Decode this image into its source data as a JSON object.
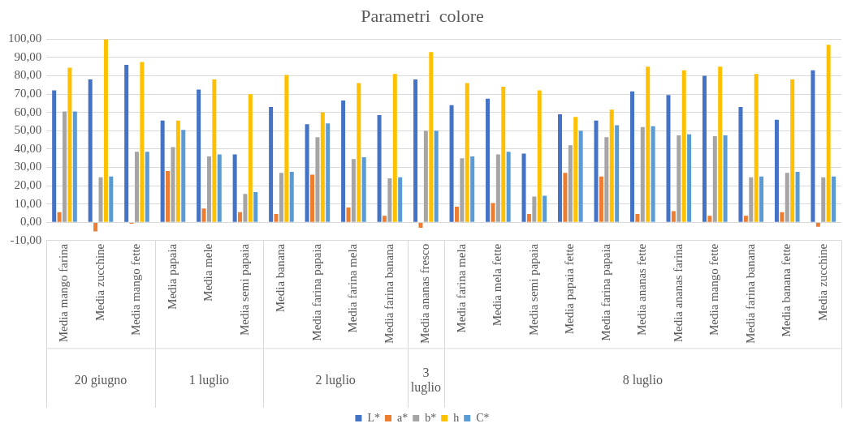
{
  "chart_data": {
    "type": "bar",
    "title": "Parametri  colore",
    "categories": [
      "Media mango farina",
      "Media zucchine",
      "Media mango fette",
      "Media papaia",
      "Media mele",
      "Media semi papaia",
      "Media banana",
      "Media farina papaia",
      "Media farina mela",
      "Media farina banana",
      "Media ananas fresco",
      "Media farina mela",
      "Media mela fette",
      "Media semi papaia",
      "Media papaia fette",
      "Media farina papaia",
      "Media ananas fette",
      "Media ananas farina",
      "Media mango fette",
      "Media farina banana",
      "Media banana fette",
      "Media zucchine"
    ],
    "series": [
      {
        "name": "L*",
        "color": "#4472c4",
        "values": [
          72,
          78,
          86,
          55.5,
          72.5,
          37,
          63,
          53.5,
          66.5,
          58.5,
          78,
          64,
          67.5,
          37.5,
          59,
          55.5,
          71.5,
          69.5,
          80,
          63,
          56,
          83
        ]
      },
      {
        "name": "a*",
        "color": "#ed7d31",
        "values": [
          5.5,
          -5,
          -0.8,
          28,
          7.5,
          5.5,
          4.5,
          26,
          8,
          3.5,
          -3,
          8.5,
          10.5,
          4.5,
          27,
          25,
          4.5,
          6,
          3.5,
          3.5,
          5.5,
          -2.5
        ]
      },
      {
        "name": "b*",
        "color": "#a5a5a5",
        "values": [
          60.5,
          24.5,
          38.5,
          41,
          36,
          15.5,
          27,
          46.5,
          34.5,
          24,
          50,
          35,
          37,
          14,
          42,
          46.5,
          52,
          47.5,
          47,
          24.5,
          27,
          24.5
        ]
      },
      {
        "name": "h",
        "color": "#ffc000",
        "values": [
          84.5,
          100,
          87.5,
          55.5,
          78,
          70,
          80.5,
          60,
          76,
          81,
          93,
          76,
          74,
          72,
          57.5,
          61.5,
          85,
          83,
          85,
          81,
          78,
          97
        ]
      },
      {
        "name": "C*",
        "color": "#5b9bd5",
        "values": [
          60.5,
          25,
          38.5,
          50.5,
          37,
          16.5,
          27.5,
          54,
          35.5,
          24.5,
          50,
          36,
          38.5,
          14.5,
          50,
          53,
          52.5,
          48,
          47.5,
          25,
          27.5,
          25
        ]
      }
    ],
    "ylim": [
      -10,
      100
    ],
    "yticks": [
      {
        "value": -10,
        "label": "-10,00"
      },
      {
        "value": 0,
        "label": "0,00"
      },
      {
        "value": 10,
        "label": "10,00"
      },
      {
        "value": 20,
        "label": "20,00"
      },
      {
        "value": 30,
        "label": "30,00"
      },
      {
        "value": 40,
        "label": "40,00"
      },
      {
        "value": 50,
        "label": "50,00"
      },
      {
        "value": 60,
        "label": "60,00"
      },
      {
        "value": 70,
        "label": "70,00"
      },
      {
        "value": 80,
        "label": "80,00"
      },
      {
        "value": 90,
        "label": "90,00"
      },
      {
        "value": 100,
        "label": "100,00"
      }
    ],
    "grid": "y",
    "legend": "bottom",
    "annotations": [
      "20 giugno",
      "1 luglio",
      "2 luglio",
      "3 luglio",
      "8 luglio"
    ]
  }
}
